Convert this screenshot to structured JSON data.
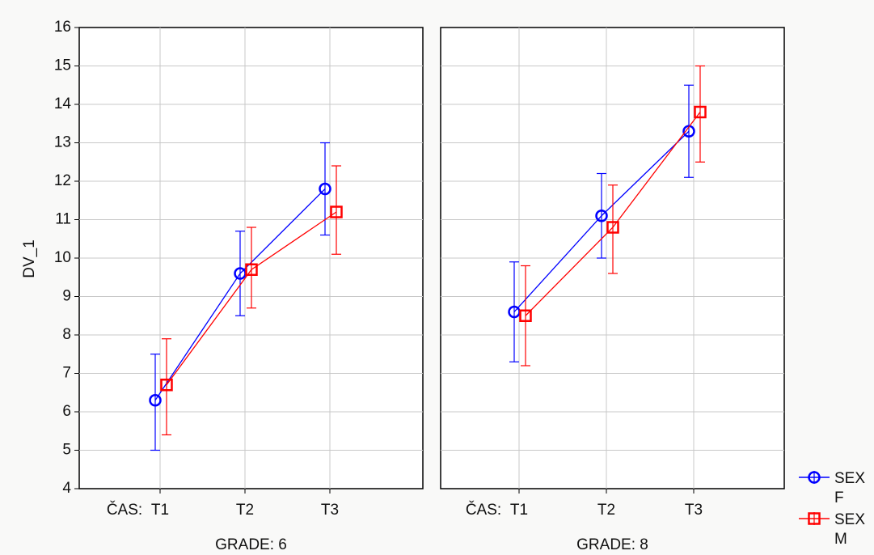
{
  "chart_data": {
    "type": "line",
    "ylabel": "DV_1",
    "ylim": [
      4,
      16
    ],
    "yticks": [
      4,
      5,
      6,
      7,
      8,
      9,
      10,
      11,
      12,
      13,
      14,
      15,
      16
    ],
    "x_factor_label": "ČAS:",
    "categories": [
      "T1",
      "T2",
      "T3"
    ],
    "grid": true,
    "legend_position": "bottom-right",
    "panels": [
      {
        "label": "GRADE: 6",
        "series": [
          {
            "name": "SEX F",
            "color": "#0000ff",
            "marker": "circle",
            "values": [
              6.3,
              9.6,
              11.8
            ],
            "lower": [
              5.0,
              8.5,
              10.6
            ],
            "upper": [
              7.5,
              10.7,
              13.0
            ]
          },
          {
            "name": "SEX M",
            "color": "#ff0000",
            "marker": "square",
            "values": [
              6.7,
              9.7,
              11.2
            ],
            "lower": [
              5.4,
              8.7,
              10.1
            ],
            "upper": [
              7.9,
              10.8,
              12.4
            ]
          }
        ]
      },
      {
        "label": "GRADE: 8",
        "series": [
          {
            "name": "SEX F",
            "color": "#0000ff",
            "marker": "circle",
            "values": [
              8.6,
              11.1,
              13.3
            ],
            "lower": [
              7.3,
              10.0,
              12.1
            ],
            "upper": [
              9.9,
              12.2,
              14.5
            ]
          },
          {
            "name": "SEX M",
            "color": "#ff0000",
            "marker": "square",
            "values": [
              8.5,
              10.8,
              13.8
            ],
            "lower": [
              7.2,
              9.6,
              12.5
            ],
            "upper": [
              9.8,
              11.9,
              15.0
            ]
          }
        ]
      }
    ],
    "legend": [
      {
        "line1": "SEX",
        "line2": "F",
        "color": "#0000ff",
        "marker": "circle"
      },
      {
        "line1": "SEX",
        "line2": "M",
        "color": "#ff0000",
        "marker": "square"
      }
    ]
  }
}
